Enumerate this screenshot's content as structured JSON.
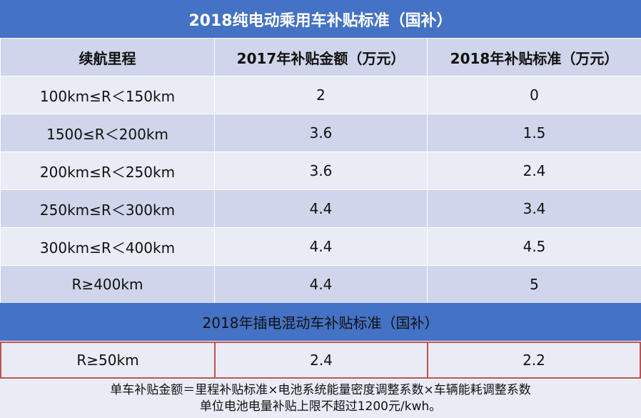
{
  "title": "2018纯电动乘用车补贴标准（国补）",
  "bev_table": {
    "headers": [
      "续航里程",
      "2017年补贴金额（万元）",
      "2018年补贴标准（万元）"
    ],
    "rows": [
      [
        "100km≤R＜150km",
        "2",
        "0"
      ],
      [
        "1500≤R＜200km",
        "3.6",
        "1.5"
      ],
      [
        "200km≤R＜250km",
        "3.6",
        "2.4"
      ],
      [
        "250km≤R＜300km",
        "4.4",
        "3.4"
      ],
      [
        "300km≤R＜400km",
        "4.4",
        "4.5"
      ],
      [
        "R≥400km",
        "4.4",
        "5"
      ]
    ]
  },
  "phev_title": "2018年插电混动车补贴标准（国补）",
  "phev_row": [
    "R≥50km",
    "2.4",
    "2.2"
  ],
  "notes": [
    "单车补贴金额＝里程补贴标准×电池系统能量密度调整系数×车辆能耗调整系数",
    "单位电池电量补贴上限不超过1200元/kwh。"
  ],
  "colors": {
    "header_blue": "#4472c4",
    "row_dark": "#cfd5ea",
    "row_light": "#e9ebf5",
    "highlight_border": "#c0504d"
  }
}
